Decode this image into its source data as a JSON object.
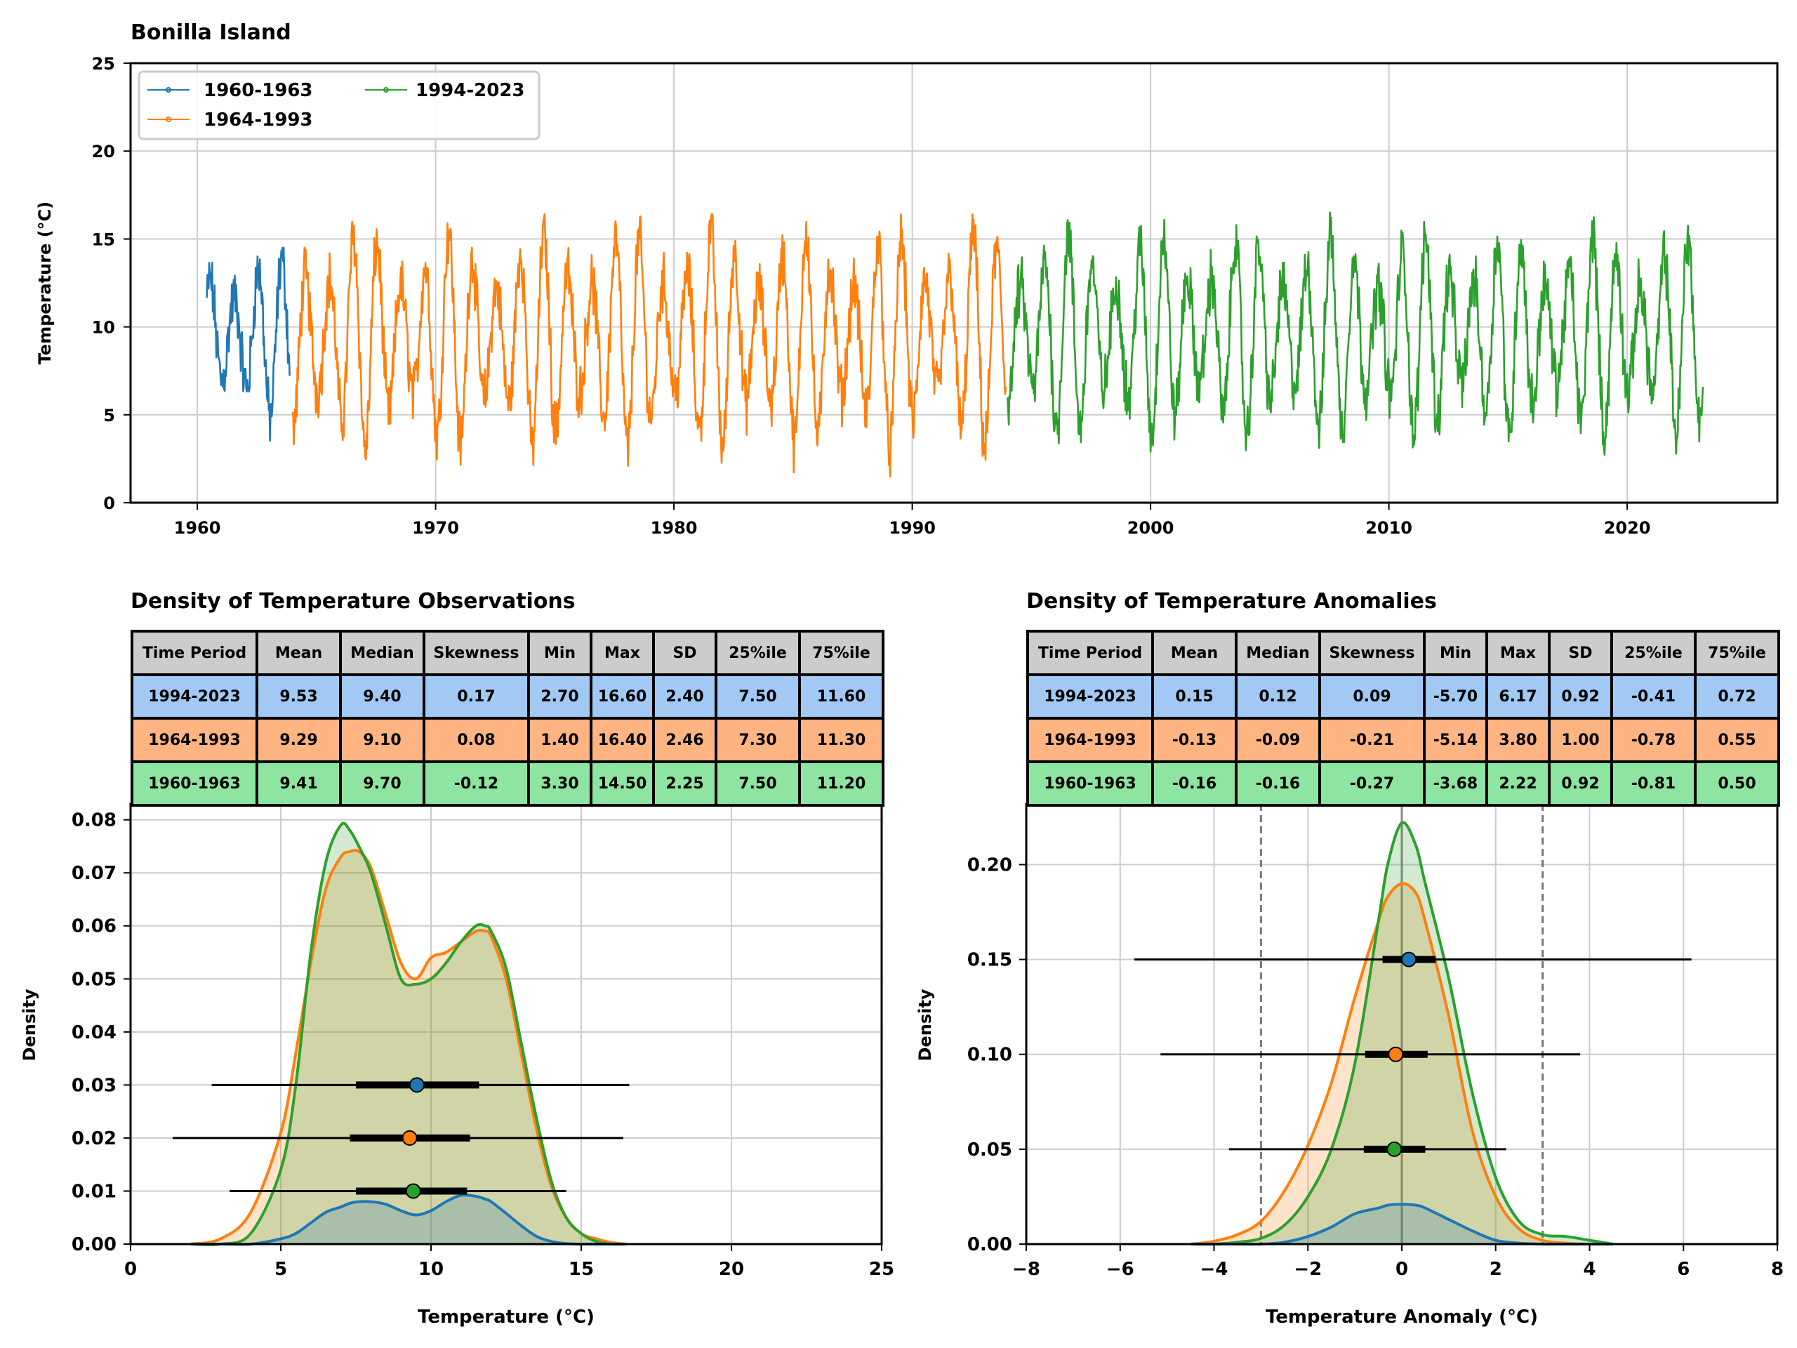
{
  "colors": {
    "p1960": "#1f77b4",
    "p1964": "#ff7f0e",
    "p1994": "#2ca02c",
    "grid": "#cccccc",
    "table_header": "#cccccc",
    "row_1994": "#a1c9f4",
    "row_1964": "#ffb482",
    "row_1960": "#8de5a1"
  },
  "chart_data": [
    {
      "type": "line",
      "title": "Bonilla Island",
      "xlabel": "",
      "ylabel": "Temperature ($^\\circ$C)",
      "ylabel_display": "Temperature (°C)",
      "xlim": [
        1957.2,
        2026.3
      ],
      "ylim": [
        0,
        25
      ],
      "xticks": [
        1960,
        1970,
        1980,
        1990,
        2000,
        2010,
        2020
      ],
      "yticks": [
        0,
        5,
        10,
        15,
        20,
        25
      ],
      "grid": true,
      "legend": "top-left",
      "series": [
        {
          "name": "1960-1963",
          "color": "#1f77b4",
          "start": 1960.4,
          "end": 1963.9,
          "mean": 9.41,
          "min": 3.3,
          "max": 14.5
        },
        {
          "name": "1964-1993",
          "color": "#ff7f0e",
          "start": 1964.0,
          "end": 1993.95,
          "mean": 9.29,
          "min": 1.4,
          "max": 16.4
        },
        {
          "name": "1994-2023",
          "color": "#2ca02c",
          "start": 1994.0,
          "end": 2023.2,
          "mean": 9.53,
          "min": 2.7,
          "max": 16.6
        }
      ]
    },
    {
      "type": "area",
      "title": "Density of Temperature Observations",
      "xlabel": "Temperature (°C)",
      "ylabel": "Density",
      "xlim": [
        0,
        25
      ],
      "ylim": [
        0,
        0.083
      ],
      "xticks": [
        0,
        5,
        10,
        15,
        20,
        25
      ],
      "yticks": [
        "0.00",
        "0.01",
        "0.02",
        "0.03",
        "0.04",
        "0.05",
        "0.06",
        "0.07",
        "0.08"
      ],
      "grid": true,
      "x": [
        2,
        3,
        4,
        5,
        5.5,
        6,
        6.5,
        7,
        7.3,
        7.6,
        8,
        8.5,
        9,
        9.5,
        10,
        10.5,
        11,
        11.5,
        11.8,
        12,
        12.5,
        13,
        13.5,
        14,
        14.5,
        15,
        15.5,
        16,
        16.5
      ],
      "series": [
        {
          "name": "1964-1993",
          "color": "#ff7f0e",
          "values": [
            0.0,
            0.001,
            0.006,
            0.021,
            0.036,
            0.053,
            0.067,
            0.073,
            0.074,
            0.074,
            0.071,
            0.062,
            0.053,
            0.05,
            0.054,
            0.055,
            0.057,
            0.059,
            0.059,
            0.058,
            0.05,
            0.036,
            0.022,
            0.011,
            0.005,
            0.002,
            0.001,
            0.0003,
            0.0
          ]
        },
        {
          "name": "1994-2023",
          "color": "#2ca02c",
          "values": [
            0.0,
            0.0,
            0.002,
            0.014,
            0.03,
            0.055,
            0.072,
            0.079,
            0.078,
            0.075,
            0.07,
            0.06,
            0.05,
            0.049,
            0.05,
            0.053,
            0.057,
            0.06,
            0.06,
            0.059,
            0.052,
            0.038,
            0.024,
            0.012,
            0.005,
            0.002,
            0.0005,
            0.0,
            0.0
          ]
        },
        {
          "name": "1960-1963",
          "color": "#1f77b4",
          "values": [
            0.0,
            0.0,
            0.0,
            0.001,
            0.002,
            0.004,
            0.006,
            0.007,
            0.0077,
            0.008,
            0.008,
            0.0075,
            0.0063,
            0.0055,
            0.0063,
            0.008,
            0.0092,
            0.009,
            0.0085,
            0.008,
            0.0058,
            0.0035,
            0.0015,
            0.0005,
            0.0001,
            0.0,
            0.0,
            0.0,
            0.0
          ]
        }
      ],
      "markers": [
        {
          "name": "1994-2023",
          "color": "#1f77b4",
          "y": 0.03,
          "min": 2.7,
          "q1": 7.5,
          "mean": 9.53,
          "q3": 11.6,
          "max": 16.6
        },
        {
          "name": "1964-1993",
          "color": "#ff7f0e",
          "y": 0.02,
          "min": 1.4,
          "q1": 7.3,
          "mean": 9.29,
          "q3": 11.3,
          "max": 16.4
        },
        {
          "name": "1960-1963",
          "color": "#2ca02c",
          "y": 0.01,
          "min": 3.3,
          "q1": 7.5,
          "mean": 9.41,
          "q3": 11.2,
          "max": 14.5
        }
      ]
    },
    {
      "type": "area",
      "title": "Density of Temperature Anomalies",
      "xlabel": "Temperature Anomaly (°C)",
      "ylabel": "Density",
      "xlim": [
        -8,
        8
      ],
      "ylim": [
        0,
        0.232
      ],
      "xticks": [
        "−8",
        "−6",
        "−4",
        "−2",
        "0",
        "2",
        "4",
        "6",
        "8"
      ],
      "yticks": [
        "0.00",
        "0.05",
        "0.10",
        "0.15",
        "0.20"
      ],
      "grid": true,
      "reference_lines": [
        -3,
        0,
        3
      ],
      "x": [
        -4.5,
        -4,
        -3.5,
        -3,
        -2.5,
        -2,
        -1.5,
        -1,
        -0.5,
        -0.3,
        0,
        0.3,
        0.5,
        1,
        1.5,
        2,
        2.5,
        3,
        3.5,
        4,
        4.5
      ],
      "series": [
        {
          "name": "1964-1993",
          "color": "#ff7f0e",
          "values": [
            0.0,
            0.0015,
            0.005,
            0.012,
            0.028,
            0.052,
            0.085,
            0.13,
            0.17,
            0.183,
            0.19,
            0.185,
            0.17,
            0.12,
            0.06,
            0.025,
            0.008,
            0.002,
            0.0005,
            0.0,
            0.0
          ]
        },
        {
          "name": "1994-2023",
          "color": "#2ca02c",
          "values": [
            0.0,
            0.0,
            0.001,
            0.003,
            0.01,
            0.025,
            0.05,
            0.095,
            0.17,
            0.2,
            0.222,
            0.21,
            0.19,
            0.14,
            0.08,
            0.035,
            0.012,
            0.005,
            0.004,
            0.002,
            0.0
          ]
        },
        {
          "name": "1960-1963",
          "color": "#1f77b4",
          "values": [
            0.0,
            0.0,
            0.0,
            0.0,
            0.001,
            0.004,
            0.009,
            0.016,
            0.019,
            0.0205,
            0.021,
            0.0205,
            0.019,
            0.013,
            0.007,
            0.002,
            0.0005,
            0.0,
            0.0,
            0.0,
            0.0
          ]
        }
      ],
      "markers": [
        {
          "name": "1994-2023",
          "color": "#1f77b4",
          "y": 0.15,
          "min": -5.7,
          "q1": -0.41,
          "mean": 0.15,
          "q3": 0.72,
          "max": 6.17
        },
        {
          "name": "1964-1993",
          "color": "#ff7f0e",
          "y": 0.1,
          "min": -5.14,
          "q1": -0.78,
          "mean": -0.13,
          "q3": 0.55,
          "max": 3.8
        },
        {
          "name": "1960-1963",
          "color": "#2ca02c",
          "y": 0.05,
          "min": -3.68,
          "q1": -0.81,
          "mean": -0.16,
          "q3": 0.5,
          "max": 2.22
        }
      ]
    }
  ],
  "table_obs": {
    "headers": [
      "Time Period",
      "Mean",
      "Median",
      "Skewness",
      "Min",
      "Max",
      "SD",
      "25%ile",
      "75%ile"
    ],
    "rows": [
      [
        "1994-2023",
        "9.53",
        "9.40",
        "0.17",
        "2.70",
        "16.60",
        "2.40",
        "7.50",
        "11.60"
      ],
      [
        "1964-1993",
        "9.29",
        "9.10",
        "0.08",
        "1.40",
        "16.40",
        "2.46",
        "7.30",
        "11.30"
      ],
      [
        "1960-1963",
        "9.41",
        "9.70",
        "-0.12",
        "3.30",
        "14.50",
        "2.25",
        "7.50",
        "11.20"
      ]
    ]
  },
  "table_anom": {
    "headers": [
      "Time Period",
      "Mean",
      "Median",
      "Skewness",
      "Min",
      "Max",
      "SD",
      "25%ile",
      "75%ile"
    ],
    "rows": [
      [
        "1994-2023",
        "0.15",
        "0.12",
        "0.09",
        "-5.70",
        "6.17",
        "0.92",
        "-0.41",
        "0.72"
      ],
      [
        "1964-1993",
        "-0.13",
        "-0.09",
        "-0.21",
        "-5.14",
        "3.80",
        "1.00",
        "-0.78",
        "0.55"
      ],
      [
        "1960-1963",
        "-0.16",
        "-0.16",
        "-0.27",
        "-3.68",
        "2.22",
        "0.92",
        "-0.81",
        "0.50"
      ]
    ]
  }
}
